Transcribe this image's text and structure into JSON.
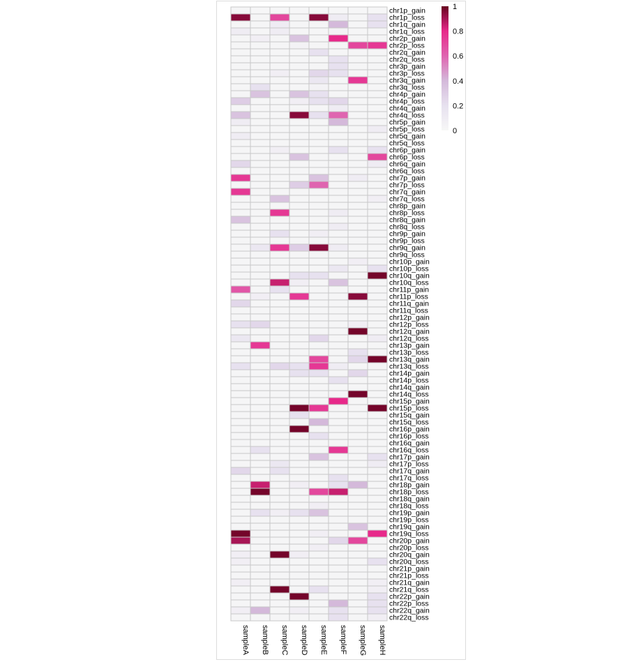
{
  "chart_data": {
    "type": "heatmap",
    "columns": [
      "sampleA",
      "sampleB",
      "sampleC",
      "sampleD",
      "sampleE",
      "sampleF",
      "sampleG",
      "sampleH"
    ],
    "rows": [
      "chr1p_gain",
      "chr1p_loss",
      "chr1q_gain",
      "chr1q_loss",
      "chr2p_gain",
      "chr2p_loss",
      "chr2q_gain",
      "chr2q_loss",
      "chr3p_gain",
      "chr3p_loss",
      "chr3q_gain",
      "chr3q_loss",
      "chr4p_gain",
      "chr4p_loss",
      "chr4q_gain",
      "chr4q_loss",
      "chr5p_gain",
      "chr5p_loss",
      "chr5q_gain",
      "chr5q_loss",
      "chr6p_gain",
      "chr6p_loss",
      "chr6q_gain",
      "chr6q_loss",
      "chr7p_gain",
      "chr7p_loss",
      "chr7q_gain",
      "chr7q_loss",
      "chr8p_gain",
      "chr8p_loss",
      "chr8q_gain",
      "chr8q_loss",
      "chr9p_gain",
      "chr9p_loss",
      "chr9q_gain",
      "chr9q_loss",
      "chr10p_gain",
      "chr10p_loss",
      "chr10q_gain",
      "chr10q_loss",
      "chr11p_gain",
      "chr11p_loss",
      "chr11q_gain",
      "chr11q_loss",
      "chr12p_gain",
      "chr12p_loss",
      "chr12q_gain",
      "chr12q_loss",
      "chr13p_gain",
      "chr13p_loss",
      "chr13q_gain",
      "chr13q_loss",
      "chr14p_gain",
      "chr14p_loss",
      "chr14q_gain",
      "chr14q_loss",
      "chr15p_gain",
      "chr15p_loss",
      "chr15q_gain",
      "chr15q_loss",
      "chr16p_gain",
      "chr16p_loss",
      "chr16q_gain",
      "chr16q_loss",
      "chr17p_gain",
      "chr17p_loss",
      "chr17q_gain",
      "chr17q_loss",
      "chr18p_gain",
      "chr18p_loss",
      "chr18q_gain",
      "chr18q_loss",
      "chr19p_gain",
      "chr19p_loss",
      "chr19q_gain",
      "chr19q_loss",
      "chr20p_gain",
      "chr20p_loss",
      "chr20q_gain",
      "chr20q_loss",
      "chr21p_gain",
      "chr21p_loss",
      "chr21q_gain",
      "chr21q_loss",
      "chr22p_gain",
      "chr22p_loss",
      "chr22q_gain",
      "chr22q_loss"
    ],
    "values": [
      [
        0.02,
        0.01,
        0.01,
        0.01,
        0.01,
        0.01,
        0.01,
        0.01
      ],
      [
        0.95,
        0.02,
        0.7,
        0.02,
        0.95,
        0.1,
        0.02,
        0.2
      ],
      [
        0.02,
        0.02,
        0.1,
        0.02,
        0.02,
        0.4,
        0.02,
        0.2
      ],
      [
        0.1,
        0.02,
        0.1,
        0.02,
        0.02,
        0.05,
        0.02,
        0.02
      ],
      [
        0.02,
        0.08,
        0.02,
        0.35,
        0.02,
        0.8,
        0.02,
        0.02
      ],
      [
        0.02,
        0.02,
        0.02,
        0.05,
        0.02,
        0.02,
        0.7,
        0.75
      ],
      [
        0.02,
        0.02,
        0.02,
        0.02,
        0.2,
        0.02,
        0.02,
        0.02
      ],
      [
        0.02,
        0.02,
        0.02,
        0.02,
        0.02,
        0.2,
        0.02,
        0.02
      ],
      [
        0.02,
        0.02,
        0.02,
        0.02,
        0.02,
        0.2,
        0.02,
        0.02
      ],
      [
        0.02,
        0.02,
        0.08,
        0.02,
        0.25,
        0.2,
        0.02,
        0.02
      ],
      [
        0.02,
        0.02,
        0.02,
        0.02,
        0.15,
        0.02,
        0.75,
        0.02
      ],
      [
        0.02,
        0.2,
        0.02,
        0.02,
        0.05,
        0.02,
        0.02,
        0.02
      ],
      [
        0.02,
        0.35,
        0.02,
        0.35,
        0.2,
        0.02,
        0.02,
        0.02
      ],
      [
        0.3,
        0.02,
        0.02,
        0.08,
        0.2,
        0.25,
        0.02,
        0.02
      ],
      [
        0.02,
        0.02,
        0.02,
        0.02,
        0.02,
        0.1,
        0.02,
        0.02
      ],
      [
        0.35,
        0.02,
        0.02,
        0.95,
        0.2,
        0.6,
        0.02,
        0.02
      ],
      [
        0.1,
        0.02,
        0.02,
        0.02,
        0.02,
        0.4,
        0.02,
        0.02
      ],
      [
        0.02,
        0.02,
        0.02,
        0.02,
        0.02,
        0.02,
        0.02,
        0.1
      ],
      [
        0.1,
        0.02,
        0.02,
        0.02,
        0.02,
        0.02,
        0.02,
        0.02
      ],
      [
        0.02,
        0.02,
        0.02,
        0.02,
        0.02,
        0.02,
        0.02,
        0.02
      ],
      [
        0.02,
        0.02,
        0.08,
        0.02,
        0.02,
        0.2,
        0.02,
        0.2
      ],
      [
        0.02,
        0.02,
        0.02,
        0.35,
        0.02,
        0.02,
        0.02,
        0.7
      ],
      [
        0.25,
        0.02,
        0.02,
        0.02,
        0.02,
        0.02,
        0.02,
        0.1
      ],
      [
        0.02,
        0.02,
        0.02,
        0.02,
        0.02,
        0.02,
        0.02,
        0.02
      ],
      [
        0.75,
        0.02,
        0.02,
        0.02,
        0.35,
        0.02,
        0.1,
        0.02
      ],
      [
        0.02,
        0.02,
        0.02,
        0.3,
        0.6,
        0.02,
        0.02,
        0.02
      ],
      [
        0.75,
        0.02,
        0.02,
        0.02,
        0.02,
        0.02,
        0.02,
        0.02
      ],
      [
        0.02,
        0.02,
        0.35,
        0.02,
        0.02,
        0.02,
        0.02,
        0.08
      ],
      [
        0.02,
        0.02,
        0.02,
        0.02,
        0.02,
        0.02,
        0.02,
        0.02
      ],
      [
        0.02,
        0.02,
        0.75,
        0.02,
        0.02,
        0.1,
        0.02,
        0.02
      ],
      [
        0.35,
        0.02,
        0.02,
        0.02,
        0.02,
        0.02,
        0.02,
        0.02
      ],
      [
        0.02,
        0.02,
        0.02,
        0.02,
        0.02,
        0.1,
        0.02,
        0.02
      ],
      [
        0.02,
        0.02,
        0.2,
        0.02,
        0.08,
        0.02,
        0.02,
        0.02
      ],
      [
        0.02,
        0.02,
        0.02,
        0.02,
        0.02,
        0.02,
        0.02,
        0.02
      ],
      [
        0.02,
        0.15,
        0.75,
        0.3,
        0.95,
        0.1,
        0.02,
        0.02
      ],
      [
        0.02,
        0.02,
        0.02,
        0.02,
        0.02,
        0.02,
        0.02,
        0.02
      ],
      [
        0.02,
        0.02,
        0.02,
        0.02,
        0.02,
        0.02,
        0.08,
        0.02
      ],
      [
        0.02,
        0.02,
        0.02,
        0.02,
        0.02,
        0.15,
        0.02,
        0.2
      ],
      [
        0.02,
        0.02,
        0.02,
        0.2,
        0.2,
        0.02,
        0.02,
        0.98
      ],
      [
        0.02,
        0.02,
        0.85,
        0.08,
        0.02,
        0.35,
        0.02,
        0.02
      ],
      [
        0.65,
        0.02,
        0.2,
        0.02,
        0.02,
        0.02,
        0.02,
        0.02
      ],
      [
        0.02,
        0.08,
        0.02,
        0.75,
        0.02,
        0.02,
        0.95,
        0.02
      ],
      [
        0.25,
        0.02,
        0.02,
        0.02,
        0.02,
        0.02,
        0.02,
        0.02
      ],
      [
        0.02,
        0.02,
        0.02,
        0.02,
        0.02,
        0.02,
        0.02,
        0.02
      ],
      [
        0.02,
        0.02,
        0.02,
        0.02,
        0.02,
        0.02,
        0.02,
        0.02
      ],
      [
        0.2,
        0.25,
        0.02,
        0.02,
        0.02,
        0.02,
        0.08,
        0.02
      ],
      [
        0.02,
        0.02,
        0.02,
        0.02,
        0.02,
        0.02,
        0.98,
        0.02
      ],
      [
        0.15,
        0.02,
        0.02,
        0.02,
        0.25,
        0.02,
        0.02,
        0.1
      ],
      [
        0.02,
        0.75,
        0.02,
        0.02,
        0.02,
        0.02,
        0.02,
        0.02
      ],
      [
        0.02,
        0.02,
        0.02,
        0.02,
        0.02,
        0.02,
        0.2,
        0.02
      ],
      [
        0.02,
        0.02,
        0.02,
        0.02,
        0.7,
        0.02,
        0.25,
        0.98
      ],
      [
        0.2,
        0.02,
        0.25,
        0.2,
        0.75,
        0.1,
        0.02,
        0.02
      ],
      [
        0.02,
        0.02,
        0.02,
        0.2,
        0.2,
        0.02,
        0.25,
        0.02
      ],
      [
        0.02,
        0.02,
        0.02,
        0.02,
        0.02,
        0.2,
        0.02,
        0.02
      ],
      [
        0.02,
        0.02,
        0.02,
        0.02,
        0.02,
        0.02,
        0.02,
        0.02
      ],
      [
        0.02,
        0.02,
        0.02,
        0.02,
        0.02,
        0.02,
        0.98,
        0.02
      ],
      [
        0.02,
        0.02,
        0.02,
        0.02,
        0.02,
        0.8,
        0.02,
        0.02
      ],
      [
        0.02,
        0.02,
        0.02,
        0.98,
        0.75,
        0.02,
        0.02,
        0.98
      ],
      [
        0.02,
        0.02,
        0.02,
        0.2,
        0.02,
        0.02,
        0.02,
        0.02
      ],
      [
        0.02,
        0.02,
        0.02,
        0.02,
        0.4,
        0.02,
        0.02,
        0.02
      ],
      [
        0.02,
        0.02,
        0.02,
        0.98,
        0.02,
        0.02,
        0.02,
        0.02
      ],
      [
        0.02,
        0.02,
        0.02,
        0.02,
        0.2,
        0.02,
        0.02,
        0.02
      ],
      [
        0.02,
        0.02,
        0.02,
        0.02,
        0.02,
        0.02,
        0.02,
        0.02
      ],
      [
        0.02,
        0.2,
        0.02,
        0.02,
        0.02,
        0.75,
        0.02,
        0.02
      ],
      [
        0.02,
        0.02,
        0.02,
        0.02,
        0.35,
        0.02,
        0.02,
        0.2
      ],
      [
        0.02,
        0.02,
        0.15,
        0.02,
        0.02,
        0.02,
        0.02,
        0.1
      ],
      [
        0.25,
        0.02,
        0.2,
        0.02,
        0.02,
        0.02,
        0.02,
        0.02
      ],
      [
        0.02,
        0.02,
        0.02,
        0.02,
        0.02,
        0.2,
        0.02,
        0.02
      ],
      [
        0.02,
        0.85,
        0.02,
        0.08,
        0.02,
        0.2,
        0.4,
        0.02
      ],
      [
        0.02,
        0.98,
        0.02,
        0.02,
        0.7,
        0.85,
        0.02,
        0.02
      ],
      [
        0.02,
        0.02,
        0.02,
        0.02,
        0.02,
        0.02,
        0.02,
        0.02
      ],
      [
        0.02,
        0.02,
        0.02,
        0.02,
        0.08,
        0.02,
        0.02,
        0.02
      ],
      [
        0.02,
        0.2,
        0.08,
        0.2,
        0.35,
        0.02,
        0.02,
        0.02
      ],
      [
        0.02,
        0.02,
        0.02,
        0.02,
        0.02,
        0.02,
        0.02,
        0.02
      ],
      [
        0.02,
        0.02,
        0.02,
        0.02,
        0.02,
        0.02,
        0.35,
        0.02
      ],
      [
        0.98,
        0.02,
        0.02,
        0.02,
        0.08,
        0.02,
        0.02,
        0.8
      ],
      [
        0.9,
        0.02,
        0.02,
        0.02,
        0.02,
        0.25,
        0.7,
        0.02
      ],
      [
        0.02,
        0.02,
        0.02,
        0.02,
        0.08,
        0.02,
        0.02,
        0.02
      ],
      [
        0.08,
        0.02,
        0.98,
        0.08,
        0.02,
        0.02,
        0.02,
        0.02
      ],
      [
        0.08,
        0.02,
        0.02,
        0.02,
        0.02,
        0.02,
        0.02,
        0.2
      ],
      [
        0.02,
        0.02,
        0.02,
        0.02,
        0.02,
        0.02,
        0.02,
        0.02
      ],
      [
        0.02,
        0.02,
        0.02,
        0.02,
        0.02,
        0.02,
        0.02,
        0.02
      ],
      [
        0.08,
        0.02,
        0.02,
        0.02,
        0.02,
        0.02,
        0.02,
        0.08
      ],
      [
        0.02,
        0.02,
        0.98,
        0.02,
        0.2,
        0.02,
        0.02,
        0.08
      ],
      [
        0.02,
        0.02,
        0.02,
        0.98,
        0.02,
        0.02,
        0.02,
        0.2
      ],
      [
        0.02,
        0.02,
        0.02,
        0.02,
        0.02,
        0.4,
        0.02,
        0.2
      ],
      [
        0.08,
        0.4,
        0.02,
        0.08,
        0.02,
        0.2,
        0.02,
        0.2
      ],
      [
        0.02,
        0.02,
        0.02,
        0.02,
        0.02,
        0.2,
        0.02,
        0.08
      ]
    ],
    "colorbar": {
      "min": 0,
      "max": 1,
      "ticks": [
        "0",
        "0.2",
        "0.4",
        "0.6",
        "0.8",
        "1"
      ],
      "colors": {
        "low": "#f7f7f7",
        "mid_low": "#d4b9da",
        "mid_high": "#e7298a",
        "high": "#67001f"
      }
    },
    "grid_color": "#c8c8c8"
  }
}
